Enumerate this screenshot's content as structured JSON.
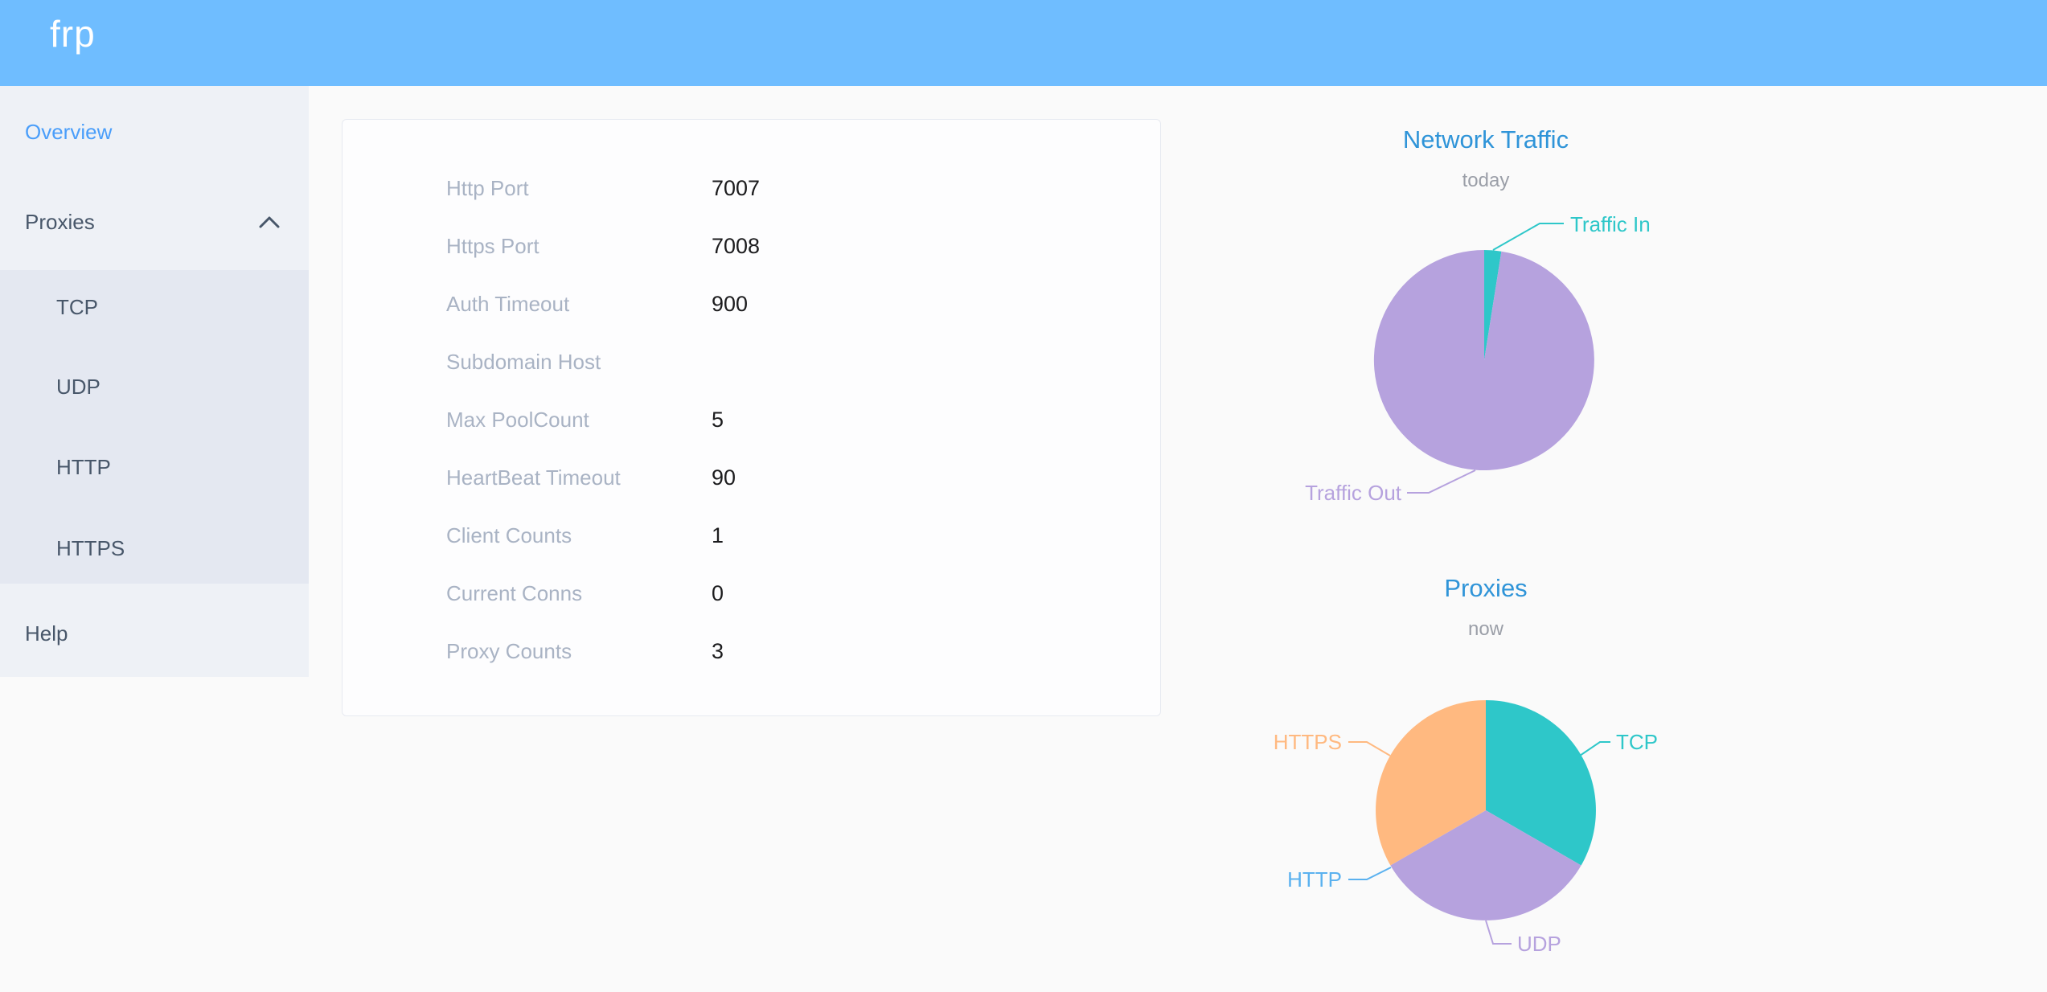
{
  "header": {
    "logo": "frp",
    "bg_color": "#6fbdff"
  },
  "sidebar": {
    "items": [
      {
        "label": "Overview",
        "active": true
      },
      {
        "label": "Proxies",
        "expanded": true
      },
      {
        "label": "Help",
        "active": false
      }
    ],
    "proxies_children": [
      {
        "label": "TCP"
      },
      {
        "label": "UDP"
      },
      {
        "label": "HTTP"
      },
      {
        "label": "HTTPS"
      }
    ],
    "active_color": "#4a9efa"
  },
  "config": {
    "rows": [
      {
        "label": "Http Port",
        "value": "7007"
      },
      {
        "label": "Https Port",
        "value": "7008"
      },
      {
        "label": "Auth Timeout",
        "value": "900"
      },
      {
        "label": "Subdomain Host",
        "value": ""
      },
      {
        "label": "Max PoolCount",
        "value": "5"
      },
      {
        "label": "HeartBeat Timeout",
        "value": "90"
      },
      {
        "label": "Client Counts",
        "value": "1"
      },
      {
        "label": "Current Conns",
        "value": "0"
      },
      {
        "label": "Proxy Counts",
        "value": "3"
      }
    ]
  },
  "chart_data": [
    {
      "type": "pie",
      "title": "Network Traffic",
      "subtitle": "today",
      "legend_position": "none",
      "label_style": "outside callout lines, labels colored as slices",
      "note": "no numeric values rendered on screen; shares estimated from arc angles (Traffic In arc ~9 degrees)",
      "series": [
        {
          "name": "Traffic In",
          "value": 2.5,
          "color": "#2ec7c9"
        },
        {
          "name": "Traffic Out",
          "value": 97.5,
          "color": "#b6a2de"
        }
      ]
    },
    {
      "type": "pie",
      "title": "Proxies",
      "subtitle": "now",
      "legend_position": "none",
      "label_style": "outside callout lines, labels colored as slices",
      "note": "counts consistent with Proxy Counts = 3; HTTP slice is zero-width but labeled",
      "series": [
        {
          "name": "TCP",
          "value": 1,
          "color": "#2ec7c9"
        },
        {
          "name": "UDP",
          "value": 1,
          "color": "#b6a2de"
        },
        {
          "name": "HTTP",
          "value": 0,
          "color": "#5ab1ef"
        },
        {
          "name": "HTTPS",
          "value": 1,
          "color": "#ffb980"
        }
      ]
    }
  ]
}
